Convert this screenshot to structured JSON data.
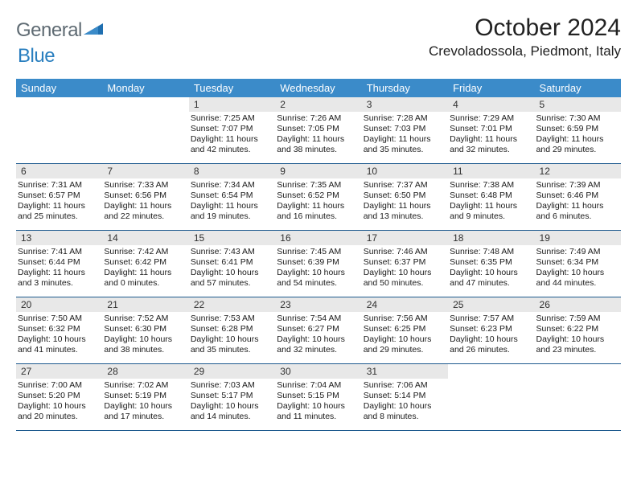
{
  "logo": {
    "word1": "General",
    "word2": "Blue"
  },
  "title": "October 2024",
  "location": "Crevoladossola, Piedmont, Italy",
  "colors": {
    "header_bar": "#3b8bc9",
    "week_divider": "#1e5a8e",
    "daynum_bg": "#e8e8e8",
    "logo_gray": "#5f6b73",
    "logo_blue": "#2a7fbf"
  },
  "dow": [
    "Sunday",
    "Monday",
    "Tuesday",
    "Wednesday",
    "Thursday",
    "Friday",
    "Saturday"
  ],
  "weeks": [
    [
      {
        "empty": true
      },
      {
        "empty": true
      },
      {
        "n": "1",
        "sunrise": "7:25 AM",
        "sunset": "7:07 PM",
        "dl1": "Daylight: 11 hours",
        "dl2": "and 42 minutes."
      },
      {
        "n": "2",
        "sunrise": "7:26 AM",
        "sunset": "7:05 PM",
        "dl1": "Daylight: 11 hours",
        "dl2": "and 38 minutes."
      },
      {
        "n": "3",
        "sunrise": "7:28 AM",
        "sunset": "7:03 PM",
        "dl1": "Daylight: 11 hours",
        "dl2": "and 35 minutes."
      },
      {
        "n": "4",
        "sunrise": "7:29 AM",
        "sunset": "7:01 PM",
        "dl1": "Daylight: 11 hours",
        "dl2": "and 32 minutes."
      },
      {
        "n": "5",
        "sunrise": "7:30 AM",
        "sunset": "6:59 PM",
        "dl1": "Daylight: 11 hours",
        "dl2": "and 29 minutes."
      }
    ],
    [
      {
        "n": "6",
        "sunrise": "7:31 AM",
        "sunset": "6:57 PM",
        "dl1": "Daylight: 11 hours",
        "dl2": "and 25 minutes."
      },
      {
        "n": "7",
        "sunrise": "7:33 AM",
        "sunset": "6:56 PM",
        "dl1": "Daylight: 11 hours",
        "dl2": "and 22 minutes."
      },
      {
        "n": "8",
        "sunrise": "7:34 AM",
        "sunset": "6:54 PM",
        "dl1": "Daylight: 11 hours",
        "dl2": "and 19 minutes."
      },
      {
        "n": "9",
        "sunrise": "7:35 AM",
        "sunset": "6:52 PM",
        "dl1": "Daylight: 11 hours",
        "dl2": "and 16 minutes."
      },
      {
        "n": "10",
        "sunrise": "7:37 AM",
        "sunset": "6:50 PM",
        "dl1": "Daylight: 11 hours",
        "dl2": "and 13 minutes."
      },
      {
        "n": "11",
        "sunrise": "7:38 AM",
        "sunset": "6:48 PM",
        "dl1": "Daylight: 11 hours",
        "dl2": "and 9 minutes."
      },
      {
        "n": "12",
        "sunrise": "7:39 AM",
        "sunset": "6:46 PM",
        "dl1": "Daylight: 11 hours",
        "dl2": "and 6 minutes."
      }
    ],
    [
      {
        "n": "13",
        "sunrise": "7:41 AM",
        "sunset": "6:44 PM",
        "dl1": "Daylight: 11 hours",
        "dl2": "and 3 minutes."
      },
      {
        "n": "14",
        "sunrise": "7:42 AM",
        "sunset": "6:42 PM",
        "dl1": "Daylight: 11 hours",
        "dl2": "and 0 minutes."
      },
      {
        "n": "15",
        "sunrise": "7:43 AM",
        "sunset": "6:41 PM",
        "dl1": "Daylight: 10 hours",
        "dl2": "and 57 minutes."
      },
      {
        "n": "16",
        "sunrise": "7:45 AM",
        "sunset": "6:39 PM",
        "dl1": "Daylight: 10 hours",
        "dl2": "and 54 minutes."
      },
      {
        "n": "17",
        "sunrise": "7:46 AM",
        "sunset": "6:37 PM",
        "dl1": "Daylight: 10 hours",
        "dl2": "and 50 minutes."
      },
      {
        "n": "18",
        "sunrise": "7:48 AM",
        "sunset": "6:35 PM",
        "dl1": "Daylight: 10 hours",
        "dl2": "and 47 minutes."
      },
      {
        "n": "19",
        "sunrise": "7:49 AM",
        "sunset": "6:34 PM",
        "dl1": "Daylight: 10 hours",
        "dl2": "and 44 minutes."
      }
    ],
    [
      {
        "n": "20",
        "sunrise": "7:50 AM",
        "sunset": "6:32 PM",
        "dl1": "Daylight: 10 hours",
        "dl2": "and 41 minutes."
      },
      {
        "n": "21",
        "sunrise": "7:52 AM",
        "sunset": "6:30 PM",
        "dl1": "Daylight: 10 hours",
        "dl2": "and 38 minutes."
      },
      {
        "n": "22",
        "sunrise": "7:53 AM",
        "sunset": "6:28 PM",
        "dl1": "Daylight: 10 hours",
        "dl2": "and 35 minutes."
      },
      {
        "n": "23",
        "sunrise": "7:54 AM",
        "sunset": "6:27 PM",
        "dl1": "Daylight: 10 hours",
        "dl2": "and 32 minutes."
      },
      {
        "n": "24",
        "sunrise": "7:56 AM",
        "sunset": "6:25 PM",
        "dl1": "Daylight: 10 hours",
        "dl2": "and 29 minutes."
      },
      {
        "n": "25",
        "sunrise": "7:57 AM",
        "sunset": "6:23 PM",
        "dl1": "Daylight: 10 hours",
        "dl2": "and 26 minutes."
      },
      {
        "n": "26",
        "sunrise": "7:59 AM",
        "sunset": "6:22 PM",
        "dl1": "Daylight: 10 hours",
        "dl2": "and 23 minutes."
      }
    ],
    [
      {
        "n": "27",
        "sunrise": "7:00 AM",
        "sunset": "5:20 PM",
        "dl1": "Daylight: 10 hours",
        "dl2": "and 20 minutes."
      },
      {
        "n": "28",
        "sunrise": "7:02 AM",
        "sunset": "5:19 PM",
        "dl1": "Daylight: 10 hours",
        "dl2": "and 17 minutes."
      },
      {
        "n": "29",
        "sunrise": "7:03 AM",
        "sunset": "5:17 PM",
        "dl1": "Daylight: 10 hours",
        "dl2": "and 14 minutes."
      },
      {
        "n": "30",
        "sunrise": "7:04 AM",
        "sunset": "5:15 PM",
        "dl1": "Daylight: 10 hours",
        "dl2": "and 11 minutes."
      },
      {
        "n": "31",
        "sunrise": "7:06 AM",
        "sunset": "5:14 PM",
        "dl1": "Daylight: 10 hours",
        "dl2": "and 8 minutes."
      },
      {
        "empty": true
      },
      {
        "empty": true
      }
    ]
  ]
}
